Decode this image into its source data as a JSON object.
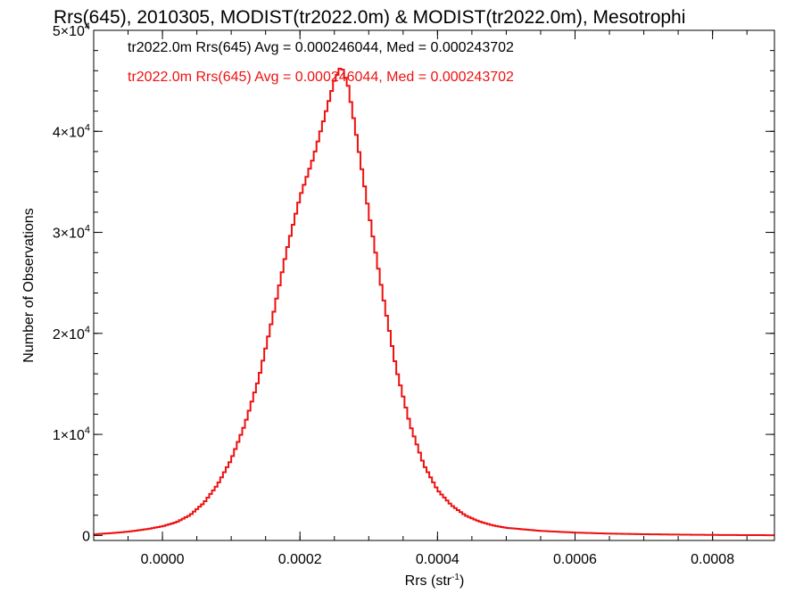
{
  "chart_data": {
    "type": "line",
    "title": "Rrs(645), 2010305, MODIST(tr2022.0m) & MODIST(tr2022.0m), Mesotrophi",
    "xlabel": "Rrs (str",
    "xlabel_superscript": "-1",
    "xlabel_close": ")",
    "ylabel": "Number of Observations",
    "xlim": [
      -0.0001,
      0.00089
    ],
    "ylim": [
      -500,
      50000
    ],
    "x_ticks": [
      {
        "value": 0.0,
        "label": "0.0000"
      },
      {
        "value": 0.0002,
        "label": "0.0002"
      },
      {
        "value": 0.0004,
        "label": "0.0004"
      },
      {
        "value": 0.0006,
        "label": "0.0006"
      },
      {
        "value": 0.0008,
        "label": "0.0008"
      }
    ],
    "y_ticks": [
      {
        "value": 0,
        "mantissa": "0",
        "exponent": ""
      },
      {
        "value": 10000,
        "mantissa": "1×10",
        "exponent": "4"
      },
      {
        "value": 20000,
        "mantissa": "2×10",
        "exponent": "4"
      },
      {
        "value": 30000,
        "mantissa": "3×10",
        "exponent": "4"
      },
      {
        "value": 40000,
        "mantissa": "4×10",
        "exponent": "4"
      },
      {
        "value": 50000,
        "mantissa": "5×10",
        "exponent": "4"
      }
    ],
    "annotations": [
      {
        "text": "tr2022.0m Rrs(645) Avg = 0.000246044, Med = 0.000243702",
        "color": "#000000"
      },
      {
        "text": "tr2022.0m Rrs(645) Avg = 0.000246044, Med = 0.000243702",
        "color": "#ee1111"
      }
    ],
    "series": [
      {
        "color": "#ee1111",
        "style": "step",
        "points": [
          [
            -0.0001,
            100
          ],
          [
            -8e-05,
            200
          ],
          [
            -6e-05,
            300
          ],
          [
            -4e-05,
            450
          ],
          [
            -2e-05,
            650
          ],
          [
            0.0,
            900
          ],
          [
            2e-05,
            1300
          ],
          [
            4e-05,
            2000
          ],
          [
            6e-05,
            3200
          ],
          [
            8e-05,
            5000
          ],
          [
            0.0001,
            7500
          ],
          [
            0.00012,
            11000
          ],
          [
            0.00014,
            15500
          ],
          [
            0.00016,
            21500
          ],
          [
            0.00018,
            28000
          ],
          [
            0.0002,
            33500
          ],
          [
            0.00022,
            37500
          ],
          [
            0.00024,
            42500
          ],
          [
            0.00025,
            45000
          ],
          [
            0.00026,
            46500
          ],
          [
            0.00027,
            44500
          ],
          [
            0.00028,
            40500
          ],
          [
            0.0003,
            32000
          ],
          [
            0.00032,
            24000
          ],
          [
            0.00034,
            16500
          ],
          [
            0.00036,
            11000
          ],
          [
            0.00038,
            7000
          ],
          [
            0.0004,
            4500
          ],
          [
            0.00042,
            3000
          ],
          [
            0.00044,
            2000
          ],
          [
            0.00046,
            1400
          ],
          [
            0.00048,
            1000
          ],
          [
            0.0005,
            750
          ],
          [
            0.00055,
            450
          ],
          [
            0.0006,
            280
          ],
          [
            0.00065,
            180
          ],
          [
            0.0007,
            120
          ],
          [
            0.00075,
            80
          ],
          [
            0.0008,
            50
          ],
          [
            0.00085,
            30
          ],
          [
            0.00089,
            20
          ]
        ]
      }
    ]
  }
}
